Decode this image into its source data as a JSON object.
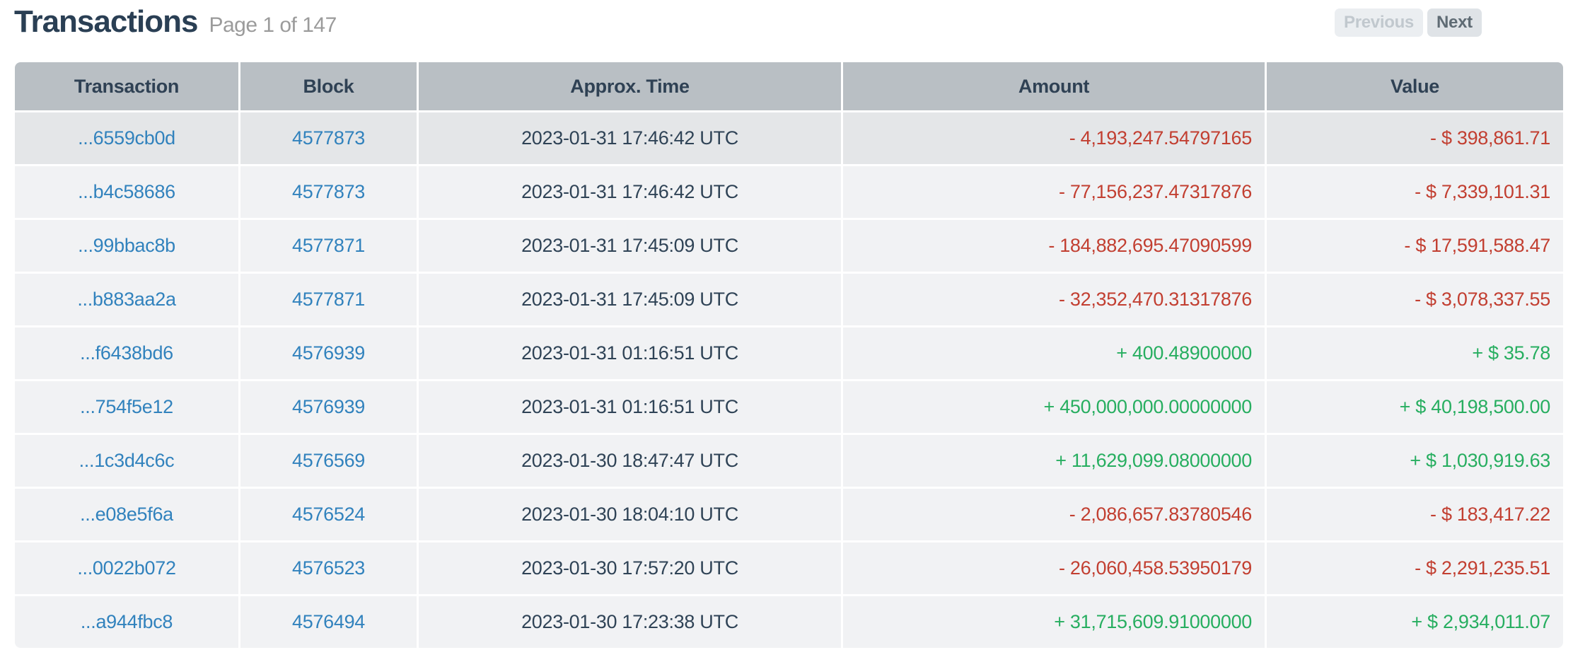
{
  "header": {
    "title": "Transactions",
    "page_info": "Page 1 of 147"
  },
  "pager": {
    "previous_label": "Previous",
    "previous_enabled": false,
    "next_label": "Next",
    "next_enabled": true
  },
  "table": {
    "columns": [
      "Transaction",
      "Block",
      "Approx. Time",
      "Amount",
      "Value"
    ],
    "rows": [
      {
        "transaction": "...6559cb0d",
        "block": "4577873",
        "time": "2023-01-31 17:46:42 UTC",
        "amount": "- 4,193,247.54797165",
        "value": "- $ 398,861.71",
        "direction": "negative",
        "highlighted": true
      },
      {
        "transaction": "...b4c58686",
        "block": "4577873",
        "time": "2023-01-31 17:46:42 UTC",
        "amount": "- 77,156,237.47317876",
        "value": "- $ 7,339,101.31",
        "direction": "negative",
        "highlighted": false
      },
      {
        "transaction": "...99bbac8b",
        "block": "4577871",
        "time": "2023-01-31 17:45:09 UTC",
        "amount": "- 184,882,695.47090599",
        "value": "- $ 17,591,588.47",
        "direction": "negative",
        "highlighted": false
      },
      {
        "transaction": "...b883aa2a",
        "block": "4577871",
        "time": "2023-01-31 17:45:09 UTC",
        "amount": "- 32,352,470.31317876",
        "value": "- $ 3,078,337.55",
        "direction": "negative",
        "highlighted": false
      },
      {
        "transaction": "...f6438bd6",
        "block": "4576939",
        "time": "2023-01-31 01:16:51 UTC",
        "amount": "+ 400.48900000",
        "value": "+ $ 35.78",
        "direction": "positive",
        "highlighted": false
      },
      {
        "transaction": "...754f5e12",
        "block": "4576939",
        "time": "2023-01-31 01:16:51 UTC",
        "amount": "+ 450,000,000.00000000",
        "value": "+ $ 40,198,500.00",
        "direction": "positive",
        "highlighted": false
      },
      {
        "transaction": "...1c3d4c6c",
        "block": "4576569",
        "time": "2023-01-30 18:47:47 UTC",
        "amount": "+ 11,629,099.08000000",
        "value": "+ $ 1,030,919.63",
        "direction": "positive",
        "highlighted": false
      },
      {
        "transaction": "...e08e5f6a",
        "block": "4576524",
        "time": "2023-01-30 18:04:10 UTC",
        "amount": "- 2,086,657.83780546",
        "value": "- $ 183,417.22",
        "direction": "negative",
        "highlighted": false
      },
      {
        "transaction": "...0022b072",
        "block": "4576523",
        "time": "2023-01-30 17:57:20 UTC",
        "amount": "- 26,060,458.53950179",
        "value": "- $ 2,291,235.51",
        "direction": "negative",
        "highlighted": false
      },
      {
        "transaction": "...a944fbc8",
        "block": "4576494",
        "time": "2023-01-30 17:23:38 UTC",
        "amount": "+ 31,715,609.91000000",
        "value": "+ $ 2,934,011.07",
        "direction": "positive",
        "highlighted": false
      }
    ]
  },
  "colors": {
    "title": "#2a3f54",
    "subtitle_gray": "#9b9b9b",
    "header_bg": "#b9bfc4",
    "header_text": "#2f4154",
    "row_bg": "#f1f2f4",
    "row_highlight_bg": "#e4e6e8",
    "link_blue": "#3182bd",
    "negative_red": "#c23f31",
    "positive_green": "#27ae60",
    "button_disabled_bg": "#ebeef1",
    "button_disabled_text": "#c1c8ce",
    "button_enabled_bg": "#dfe3e7",
    "button_enabled_text": "#5f6b74"
  }
}
